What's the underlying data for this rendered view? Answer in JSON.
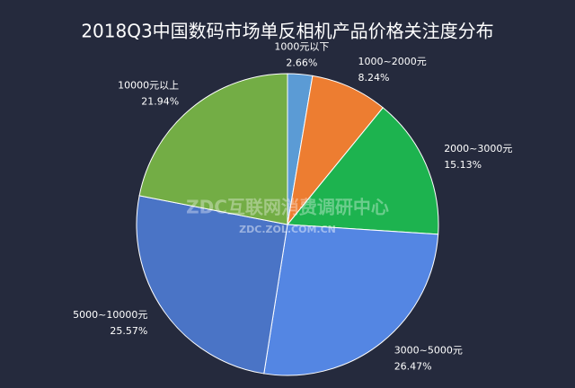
{
  "chart_data": {
    "type": "pie",
    "title": "2018Q3中国数码市场单反相机产品价格关注度分布",
    "categories": [
      "1000元以下",
      "1000~2000元",
      "2000~3000元",
      "3000~5000元",
      "5000~10000元",
      "10000元以上"
    ],
    "values": [
      2.66,
      8.24,
      15.13,
      26.47,
      25.57,
      21.94
    ],
    "value_labels": [
      "2.66%",
      "8.24%",
      "15.13%",
      "26.47%",
      "25.57%",
      "21.94%"
    ],
    "colors": [
      "#5b9bd5",
      "#ed7d31",
      "#1db34f",
      "#5486e3",
      "#4a74c6",
      "#73ad45"
    ],
    "annotations": [
      "ZDC互联网消费调研中心",
      "ZDC.ZOL.COM.CN"
    ]
  }
}
